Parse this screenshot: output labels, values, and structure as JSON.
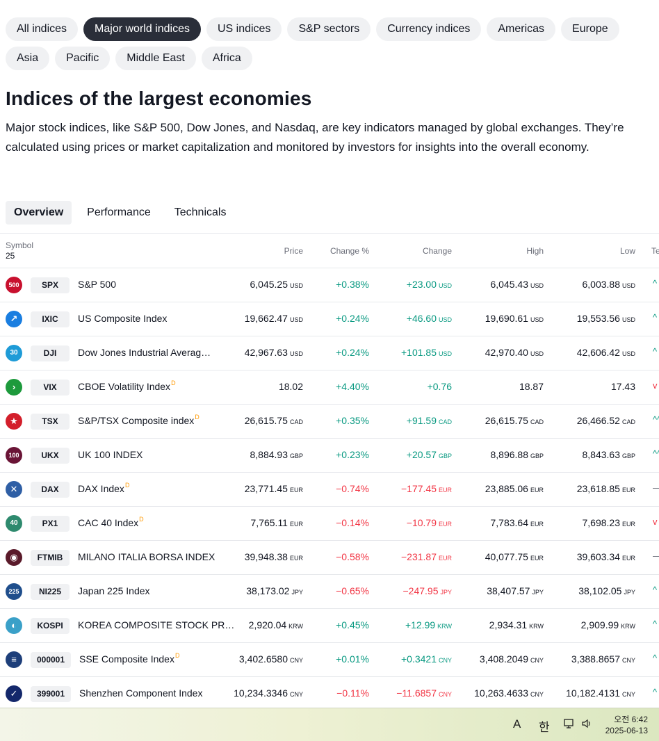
{
  "filters": {
    "row1": [
      "All indices",
      "Major world indices",
      "US indices",
      "S&P sectors",
      "Currency indices",
      "Americas",
      "Europe"
    ],
    "row2": [
      "Asia",
      "Pacific",
      "Middle East",
      "Africa"
    ],
    "active": "Major world indices"
  },
  "heading": {
    "title": "Indices of the largest economies",
    "description": "Major stock indices, like S&P 500, Dow Jones, and Nasdaq, are key indicators managed by global exchanges. They’re calculated using prices or market capitalization and monitored by investors for insights into the overall economy."
  },
  "tabs": [
    "Overview",
    "Performance",
    "Technicals"
  ],
  "active_tab": "Overview",
  "table": {
    "headers": {
      "symbol": "Symbol",
      "count": "25",
      "price": "Price",
      "change_pct": "Change %",
      "change": "Change",
      "high": "High",
      "low": "Low",
      "tech": "Te"
    },
    "rows": [
      {
        "logo": "500",
        "logo_color": "#c8102e",
        "ticker": "SPX",
        "name": "S&P 500",
        "delayed": "",
        "price": "6,045.25",
        "cur": "USD",
        "chg_pct": "+0.38%",
        "chg": "+23.00",
        "high": "6,045.43",
        "low": "6,003.88",
        "dir": "pos",
        "tech": "^"
      },
      {
        "logo": "",
        "logo_color": "#1a7ee0",
        "ticker": "IXIC",
        "name": "US Composite Index",
        "delayed": "",
        "price": "19,662.47",
        "cur": "USD",
        "chg_pct": "+0.24%",
        "chg": "+46.60",
        "high": "19,690.61",
        "low": "19,553.56",
        "dir": "pos",
        "tech": "^"
      },
      {
        "logo": "30",
        "logo_color": "#1e9bd7",
        "ticker": "DJI",
        "name": "Dow Jones Industrial Averag…",
        "delayed": "",
        "price": "42,967.63",
        "cur": "USD",
        "chg_pct": "+0.24%",
        "chg": "+101.85",
        "high": "42,970.40",
        "low": "42,606.42",
        "dir": "pos",
        "tech": "^"
      },
      {
        "logo": "",
        "logo_color": "#1d9a3c",
        "ticker": "VIX",
        "name": "CBOE Volatility Index",
        "delayed": "D",
        "price": "18.02",
        "cur": "",
        "chg_pct": "+4.40%",
        "chg": "+0.76",
        "high": "18.87",
        "low": "17.43",
        "dir": "pos",
        "tech": "v"
      },
      {
        "logo": "",
        "logo_color": "#d31f2b",
        "ticker": "TSX",
        "name": "S&P/TSX Composite index",
        "delayed": "D",
        "price": "26,615.75",
        "cur": "CAD",
        "chg_pct": "+0.35%",
        "chg": "+91.59",
        "high": "26,615.75",
        "low": "26,466.52",
        "dir": "pos",
        "tech": "^^"
      },
      {
        "logo": "100",
        "logo_color": "#6a1436",
        "ticker": "UKX",
        "name": "UK 100 INDEX",
        "delayed": "",
        "price": "8,884.93",
        "cur": "GBP",
        "chg_pct": "+0.23%",
        "chg": "+20.57",
        "high": "8,896.88",
        "low": "8,843.63",
        "dir": "pos",
        "tech": "^^"
      },
      {
        "logo": "",
        "logo_color": "#2f5fa5",
        "ticker": "DAX",
        "name": "DAX Index",
        "delayed": "D",
        "price": "23,771.45",
        "cur": "EUR",
        "chg_pct": "−0.74%",
        "chg": "−177.45",
        "high": "23,885.06",
        "low": "23,618.85",
        "dir": "neg",
        "tech": "—"
      },
      {
        "logo": "40",
        "logo_color": "#2e8a6e",
        "ticker": "PX1",
        "name": "CAC 40 Index",
        "delayed": "D",
        "price": "7,765.11",
        "cur": "EUR",
        "chg_pct": "−0.14%",
        "chg": "−10.79",
        "high": "7,783.64",
        "low": "7,698.23",
        "dir": "neg",
        "tech": "v"
      },
      {
        "logo": "",
        "logo_color": "#5a1a2a",
        "ticker": "FTMIB",
        "name": "MILANO ITALIA BORSA INDEX",
        "delayed": "",
        "price": "39,948.38",
        "cur": "EUR",
        "chg_pct": "−0.58%",
        "chg": "−231.87",
        "high": "40,077.75",
        "low": "39,603.34",
        "dir": "neg",
        "tech": "—"
      },
      {
        "logo": "225",
        "logo_color": "#1f4e8c",
        "ticker": "NI225",
        "name": "Japan 225 Index",
        "delayed": "",
        "price": "38,173.02",
        "cur": "JPY",
        "chg_pct": "−0.65%",
        "chg": "−247.95",
        "high": "38,407.57",
        "low": "38,102.05",
        "dir": "neg",
        "tech": "^"
      },
      {
        "logo": "",
        "logo_color": "#3aa0c8",
        "ticker": "KOSPI",
        "name": "KOREA COMPOSITE STOCK PR…",
        "delayed": "",
        "price": "2,920.04",
        "cur": "KRW",
        "chg_pct": "+0.45%",
        "chg": "+12.99",
        "high": "2,934.31",
        "low": "2,909.99",
        "dir": "pos",
        "tech": "^"
      },
      {
        "logo": "",
        "logo_color": "#1e3f7a",
        "ticker": "000001",
        "name": "SSE Composite Index",
        "delayed": "D",
        "price": "3,402.6580",
        "cur": "CNY",
        "chg_pct": "+0.01%",
        "chg": "+0.3421",
        "high": "3,408.2049",
        "low": "3,388.8657",
        "dir": "pos",
        "tech": "^"
      },
      {
        "logo": "",
        "logo_color": "#14286b",
        "ticker": "399001",
        "name": "Shenzhen Component Index",
        "delayed": "",
        "price": "10,234.3346",
        "cur": "CNY",
        "chg_pct": "−0.11%",
        "chg": "−11.6857",
        "high": "10,263.4633",
        "low": "10,182.4131",
        "dir": "neg",
        "tech": "^"
      }
    ]
  },
  "taskbar": {
    "ime_mode": "A",
    "ime_lang": "한",
    "time": "오전 6:42",
    "date": "2025-06-13"
  },
  "colors": {
    "positive": "#089981",
    "negative": "#f23645",
    "active_pill": "#2a2e39",
    "delayed_mark": "#ff9800"
  }
}
